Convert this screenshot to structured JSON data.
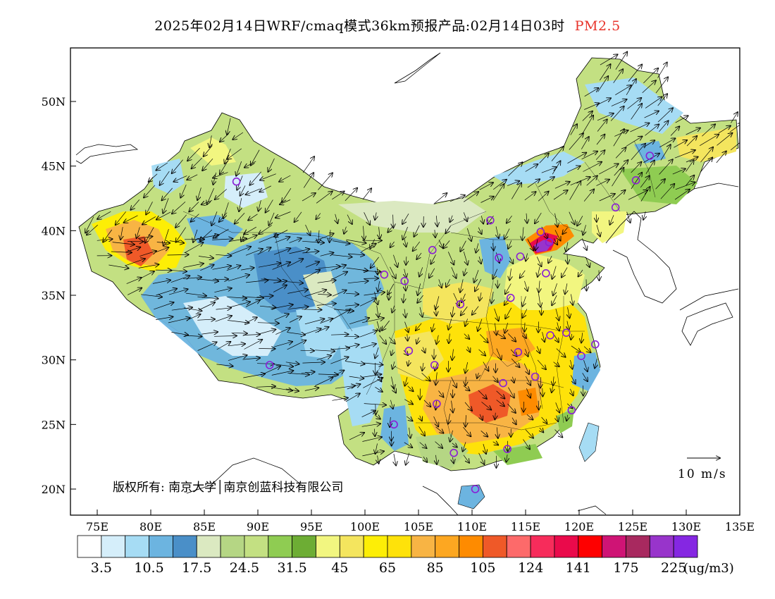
{
  "title": {
    "main": "2025年02月14日WRF/cmaq模式36km预报产品:02月14日03时",
    "variable": "PM2.5",
    "variable_color": "#e8332a"
  },
  "axes": {
    "lat_labels": [
      "50N",
      "45N",
      "40N",
      "35N",
      "30N",
      "25N",
      "20N"
    ],
    "lat_values": [
      50,
      45,
      40,
      35,
      30,
      25,
      20
    ],
    "lon_labels": [
      "75E",
      "80E",
      "85E",
      "90E",
      "95E",
      "100E",
      "105E",
      "110E",
      "115E",
      "120E",
      "125E",
      "130E",
      "135E"
    ],
    "lon_values": [
      75,
      80,
      85,
      90,
      95,
      100,
      105,
      110,
      115,
      120,
      125,
      130,
      135
    ]
  },
  "legend": {
    "colors": [
      "#ffffff",
      "#d5eefa",
      "#a6dcf4",
      "#6cb4e0",
      "#4a8fc8",
      "#dbe9c1",
      "#b5d684",
      "#c3e082",
      "#8fcc52",
      "#6dad34",
      "#f2f680",
      "#f4e55e",
      "#fdee06",
      "#fee20a",
      "#f8b444",
      "#fda721",
      "#fe8b00",
      "#ef5928",
      "#fd6a6a",
      "#f72c5b",
      "#ea0a4b",
      "#fe0000",
      "#cf1475",
      "#a8295f",
      "#9834cb",
      "#8527e2"
    ],
    "labels": [
      "3.5",
      "10.5",
      "17.5",
      "24.5",
      "31.5",
      "45",
      "65",
      "85",
      "105",
      "124",
      "141",
      "175",
      "225"
    ],
    "unit": "(ug/m3)"
  },
  "wind_scale": {
    "label": "10 m/s"
  },
  "copyright": {
    "text": "版权所有: 南京大学│南京创蓝科技有限公司"
  },
  "stations": [
    {
      "lon": 88.0,
      "lat": 43.8
    },
    {
      "lon": 91.1,
      "lat": 29.6
    },
    {
      "lon": 101.8,
      "lat": 36.6
    },
    {
      "lon": 103.7,
      "lat": 36.1
    },
    {
      "lon": 106.3,
      "lat": 38.5
    },
    {
      "lon": 111.7,
      "lat": 40.8
    },
    {
      "lon": 112.5,
      "lat": 37.9
    },
    {
      "lon": 114.5,
      "lat": 38.0
    },
    {
      "lon": 116.4,
      "lat": 39.9
    },
    {
      "lon": 117.2,
      "lat": 39.1
    },
    {
      "lon": 116.9,
      "lat": 36.7
    },
    {
      "lon": 123.4,
      "lat": 41.8
    },
    {
      "lon": 125.3,
      "lat": 43.9
    },
    {
      "lon": 126.6,
      "lat": 45.8
    },
    {
      "lon": 108.9,
      "lat": 34.3
    },
    {
      "lon": 113.6,
      "lat": 34.8
    },
    {
      "lon": 104.1,
      "lat": 30.7
    },
    {
      "lon": 106.5,
      "lat": 29.6
    },
    {
      "lon": 114.3,
      "lat": 30.6
    },
    {
      "lon": 117.3,
      "lat": 31.9
    },
    {
      "lon": 118.8,
      "lat": 32.1
    },
    {
      "lon": 121.5,
      "lat": 31.2
    },
    {
      "lon": 120.2,
      "lat": 30.3
    },
    {
      "lon": 112.9,
      "lat": 28.2
    },
    {
      "lon": 115.9,
      "lat": 28.7
    },
    {
      "lon": 119.3,
      "lat": 26.1
    },
    {
      "lon": 106.7,
      "lat": 26.6
    },
    {
      "lon": 102.7,
      "lat": 25.0
    },
    {
      "lon": 108.3,
      "lat": 22.8
    },
    {
      "lon": 113.3,
      "lat": 23.1
    },
    {
      "lon": 110.3,
      "lat": 20.0
    }
  ]
}
